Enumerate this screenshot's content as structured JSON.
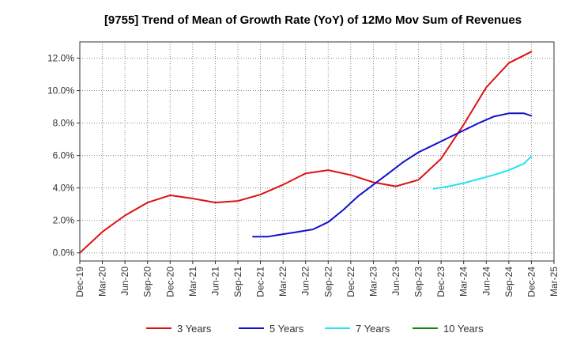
{
  "chart_data": {
    "type": "line",
    "title": "[9755]  Trend of Mean of Growth Rate (YoY) of 12Mo Mov Sum of Revenues",
    "xlabel": "",
    "ylabel": "",
    "ylim": [
      -0.5,
      13.0
    ],
    "yticks": [
      0.0,
      2.0,
      4.0,
      6.0,
      8.0,
      10.0,
      12.0
    ],
    "ytick_labels": [
      "0.0%",
      "2.0%",
      "4.0%",
      "6.0%",
      "8.0%",
      "10.0%",
      "12.0%"
    ],
    "x_labels": [
      "Dec-19",
      "Mar-20",
      "Jun-20",
      "Sep-20",
      "Dec-20",
      "Mar-21",
      "Jun-21",
      "Sep-21",
      "Dec-21",
      "Mar-22",
      "Jun-22",
      "Sep-22",
      "Dec-22",
      "Mar-23",
      "Jun-23",
      "Sep-23",
      "Dec-23",
      "Mar-24",
      "Jun-24",
      "Sep-24",
      "Dec-24",
      "Mar-25"
    ],
    "grid": true,
    "legend_position": "bottom",
    "series": [
      {
        "name": "3 Years",
        "color": "#dd1111",
        "points": [
          [
            0,
            0.0
          ],
          [
            1,
            1.3
          ],
          [
            2,
            2.3
          ],
          [
            3,
            3.1
          ],
          [
            4,
            3.55
          ],
          [
            5,
            3.35
          ],
          [
            6,
            3.1
          ],
          [
            7,
            3.2
          ],
          [
            8,
            3.6
          ],
          [
            9,
            4.2
          ],
          [
            10,
            4.9
          ],
          [
            11,
            5.1
          ],
          [
            12,
            4.8
          ],
          [
            13,
            4.35
          ],
          [
            14,
            4.1
          ],
          [
            15,
            4.5
          ],
          [
            16,
            5.8
          ],
          [
            17,
            7.9
          ],
          [
            18,
            10.2
          ],
          [
            19,
            11.7
          ],
          [
            20,
            12.4
          ]
        ]
      },
      {
        "name": "5 Years",
        "color": "#1111cc",
        "points": [
          [
            7.67,
            1.0
          ],
          [
            8.33,
            1.0
          ],
          [
            9,
            1.15
          ],
          [
            9.67,
            1.3
          ],
          [
            10.33,
            1.45
          ],
          [
            11,
            1.9
          ],
          [
            11.67,
            2.65
          ],
          [
            12.33,
            3.5
          ],
          [
            13,
            4.2
          ],
          [
            13.67,
            4.9
          ],
          [
            14.33,
            5.6
          ],
          [
            15,
            6.2
          ],
          [
            15.67,
            6.65
          ],
          [
            16.33,
            7.1
          ],
          [
            17,
            7.55
          ],
          [
            17.67,
            8.0
          ],
          [
            18.33,
            8.4
          ],
          [
            19,
            8.6
          ],
          [
            19.67,
            8.6
          ],
          [
            20,
            8.45
          ]
        ]
      },
      {
        "name": "7 Years",
        "color": "#22e5ee",
        "points": [
          [
            15.67,
            3.95
          ],
          [
            16.33,
            4.1
          ],
          [
            17,
            4.3
          ],
          [
            17.67,
            4.55
          ],
          [
            18.33,
            4.8
          ],
          [
            19,
            5.1
          ],
          [
            19.67,
            5.5
          ],
          [
            20,
            5.95
          ]
        ]
      },
      {
        "name": "10 Years",
        "color": "#118811",
        "points": []
      }
    ]
  }
}
